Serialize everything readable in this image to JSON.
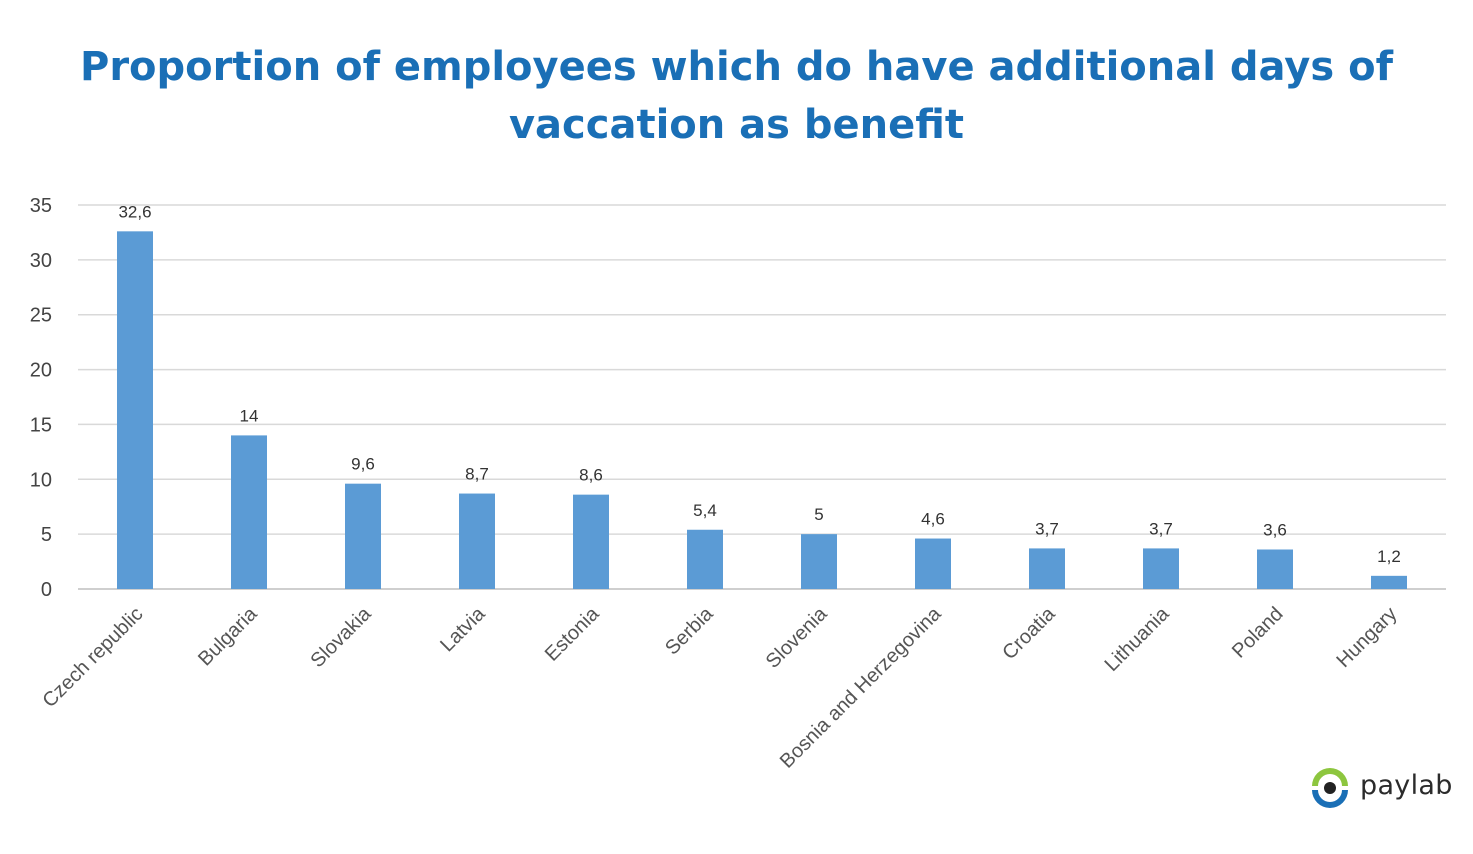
{
  "chart_data": {
    "type": "bar",
    "title": [
      "Proportion of employees which do have additional days of",
      "vaccation as benefit"
    ],
    "categories": [
      "Czech republic",
      "Bulgaria",
      "Slovakia",
      "Latvia",
      "Estonia",
      "Serbia",
      "Slovenia",
      "Bosnia and Herzegovina",
      "Croatia",
      "Lithuania",
      "Poland",
      "Hungary"
    ],
    "values": [
      32.6,
      14,
      9.6,
      8.7,
      8.6,
      5.4,
      5,
      4.6,
      3.7,
      3.7,
      3.6,
      1.2
    ],
    "data_labels": [
      "32,6",
      "14",
      "9,6",
      "8,7",
      "8,6",
      "5,4",
      "5",
      "4,6",
      "3,7",
      "3,7",
      "3,6",
      "1,2"
    ],
    "ylim": [
      0,
      35
    ],
    "yticks": [
      0,
      5,
      10,
      15,
      20,
      25,
      30,
      35
    ],
    "grid": true,
    "bar_color": "#5b9bd5",
    "title_color": "#1a6fb6"
  },
  "logo": {
    "text": "paylab",
    "icon": "eye-icon"
  }
}
